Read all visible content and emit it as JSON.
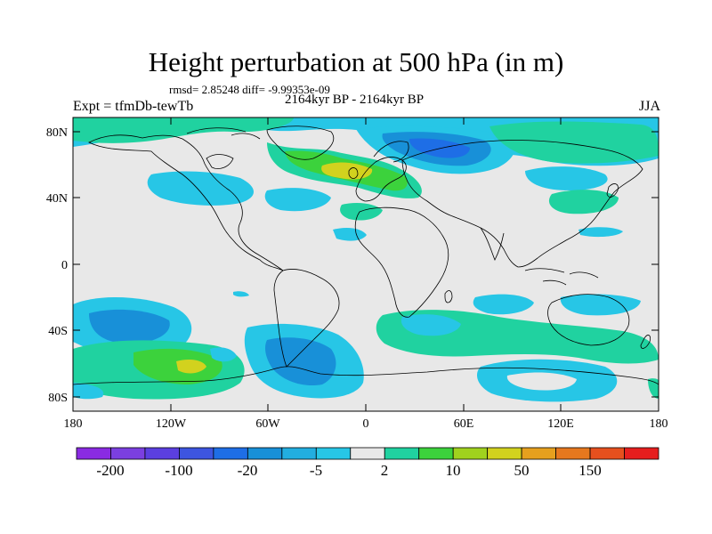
{
  "header": {
    "title": "Height perturbation at 500 hPa (in m)",
    "stats": "rmsd= 2.85248 diff= -9.99353e-09",
    "subtitle": "2164kyr BP - 2164kyr BP",
    "experiment": "Expt = tfmDb-tewTb",
    "season": "JJA"
  },
  "axes": {
    "lat_labels": [
      "80N",
      "40N",
      "0",
      "40S",
      "80S"
    ],
    "lon_labels": [
      "180",
      "120W",
      "60W",
      "0",
      "60E",
      "120E",
      "180"
    ]
  },
  "colorbar": {
    "colors": [
      "#8a2be2",
      "#7b3fe0",
      "#5b3fe0",
      "#3d55e0",
      "#1e6ee6",
      "#1890d8",
      "#22aee0",
      "#27c6e6",
      "#e8e8e8",
      "#20d2a0",
      "#3cd23c",
      "#a0d21e",
      "#d2d21e",
      "#e6a01e",
      "#e6781e",
      "#e6501e",
      "#e61e1e"
    ],
    "labels": [
      "-200",
      "-100",
      "-20",
      "-5",
      "2",
      "10",
      "50",
      "150"
    ]
  },
  "palette": {
    "neutral": "#e8e8e8",
    "light_blue": "#27c6e6",
    "mid_blue": "#1890d8",
    "dark_blue": "#1e6ee6",
    "green_cyan": "#20d2a0",
    "green": "#3cd23c",
    "yellow": "#d2d21e"
  }
}
